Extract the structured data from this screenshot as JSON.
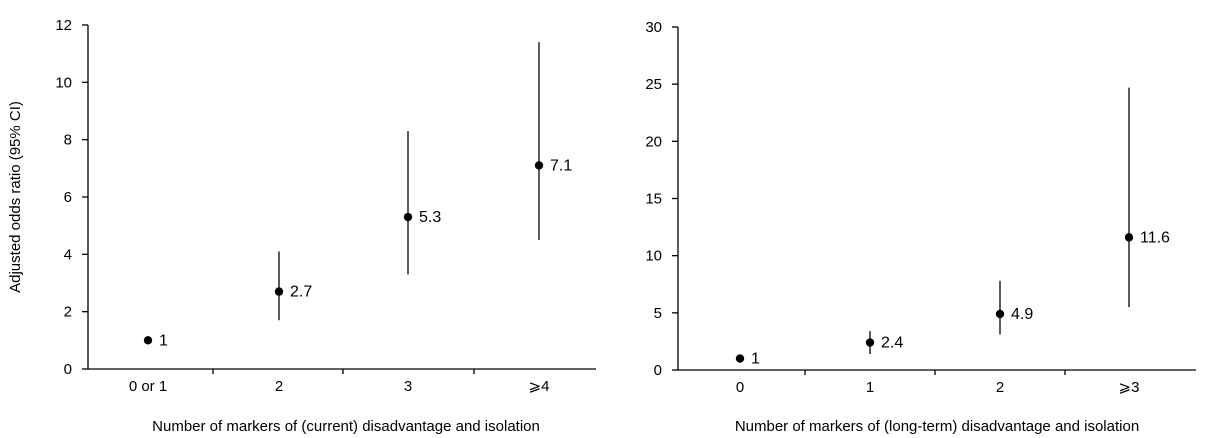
{
  "chart_data": [
    {
      "type": "scatter",
      "title": "",
      "xlabel": "Number of markers of (current) disadvantage and isolation",
      "ylabel": "Adjusted odds ratio (95% CI)",
      "ylim": [
        0,
        12
      ],
      "yticks": [
        0,
        2,
        4,
        6,
        8,
        10,
        12
      ],
      "grid": false,
      "legend": "none",
      "categories": [
        "0 or 1",
        "2",
        "3",
        "⩾4"
      ],
      "values": [
        1,
        2.7,
        5.3,
        7.1
      ],
      "ci_lower": [
        null,
        1.7,
        3.3,
        4.5
      ],
      "ci_upper": [
        null,
        4.1,
        8.3,
        11.4
      ],
      "data_labels": [
        "1",
        "2.7",
        "5.3",
        "7.1"
      ]
    },
    {
      "type": "scatter",
      "title": "",
      "xlabel": "Number of markers of (long-term) disadvantage and isolation",
      "ylabel": "",
      "ylim": [
        0,
        30
      ],
      "yticks": [
        0,
        5,
        10,
        15,
        20,
        25,
        30
      ],
      "grid": false,
      "legend": "none",
      "categories": [
        "0",
        "1",
        "2",
        "⩾3"
      ],
      "values": [
        1,
        2.4,
        4.9,
        11.6
      ],
      "ci_lower": [
        null,
        1.4,
        3.1,
        5.5
      ],
      "ci_upper": [
        null,
        3.4,
        7.8,
        24.7
      ],
      "data_labels": [
        "1",
        "2.4",
        "4.9",
        "11.6"
      ]
    }
  ]
}
